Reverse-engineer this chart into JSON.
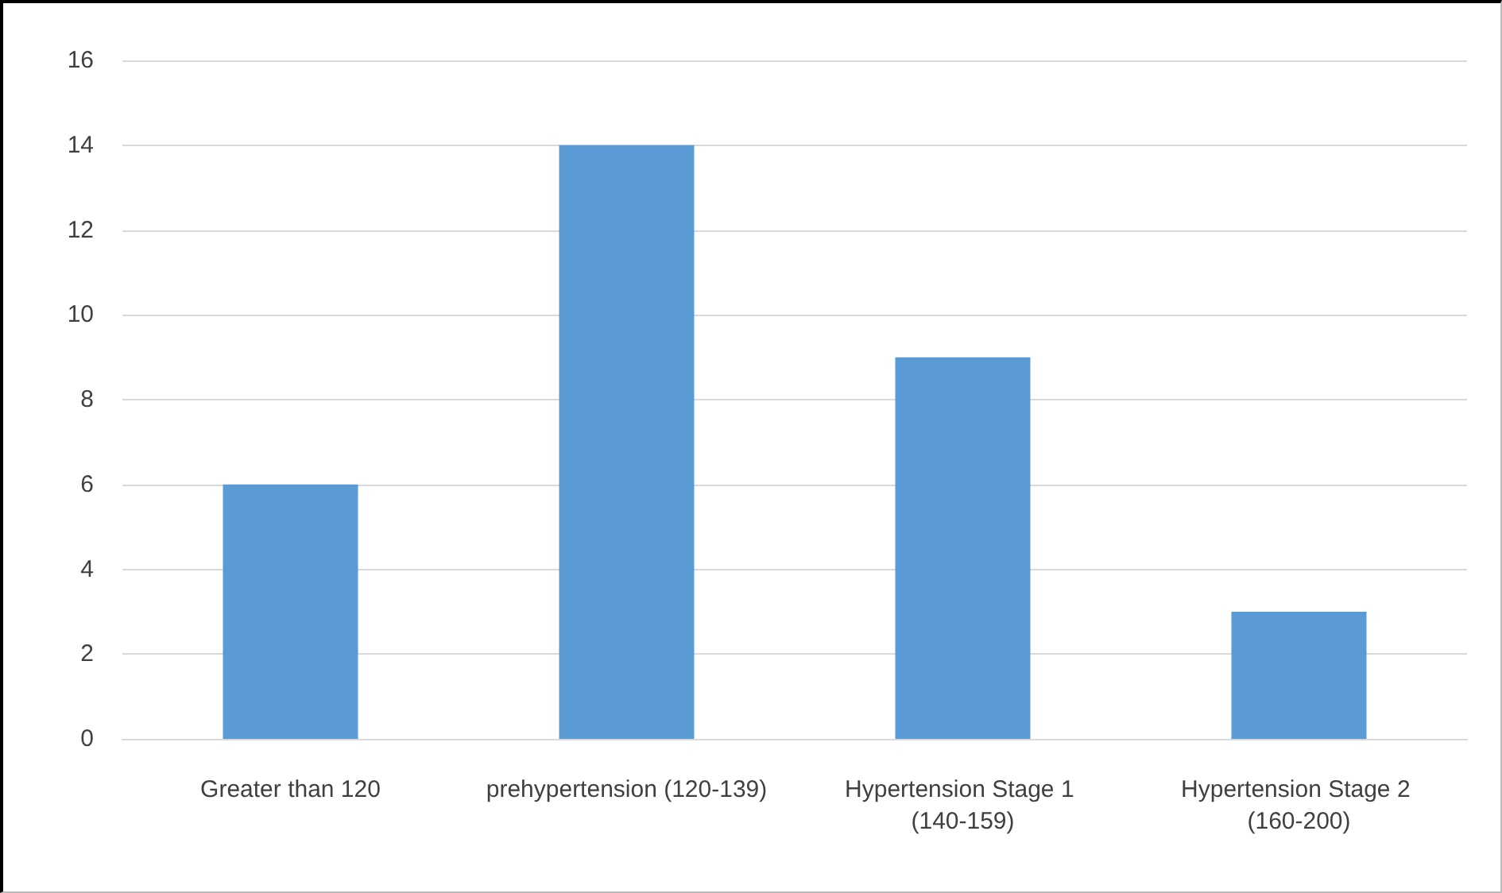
{
  "chart_data": {
    "type": "bar",
    "categories": [
      "Greater than 120",
      "prehypertension (120-139)",
      "Hypertension Stage 1 (140-159)",
      "Hypertension Stage 2 (160-200)"
    ],
    "values": [
      6,
      14,
      9,
      3
    ],
    "color": "#5b9bd5",
    "ylim": [
      0,
      16
    ],
    "yticks": [
      0,
      2,
      4,
      6,
      8,
      10,
      12,
      14,
      16
    ],
    "grid": "y"
  }
}
